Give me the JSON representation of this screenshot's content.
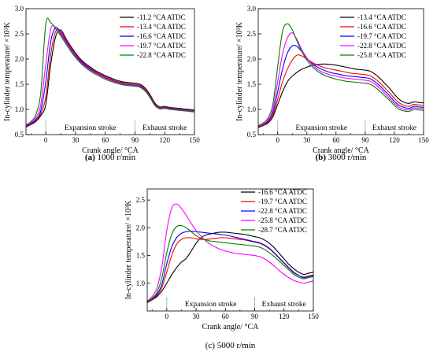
{
  "chart_data": [
    {
      "type": "line",
      "caption_letter": "(a)",
      "caption_text": " 1000 r/min",
      "xlabel": "Crank angle/ °CA",
      "ylabel": "In-cylinder temperature/ ×10³K",
      "xlim": [
        -20,
        150
      ],
      "ylim": [
        0.5,
        3.0
      ],
      "xticks": [
        0,
        30,
        60,
        90,
        120,
        150
      ],
      "yticks": [
        0.5,
        1.0,
        1.5,
        2.0,
        2.5,
        3.0
      ],
      "x_tick_labels": [
        "0",
        "30",
        "60",
        "90",
        "120",
        "150"
      ],
      "y_tick_labels": [
        "0.5",
        "1.0",
        "1.5",
        "2.0",
        "2.5",
        "3.0"
      ],
      "legend_placement": "top-right",
      "annotations": [
        "Expansion stroke",
        "Exhaust stroke"
      ],
      "stroke_boundary_x": 90,
      "x": [
        -20,
        -15,
        -10,
        -5,
        0,
        5,
        10,
        15,
        20,
        25,
        30,
        35,
        40,
        45,
        50,
        55,
        60,
        65,
        70,
        75,
        80,
        85,
        90,
        95,
        100,
        105,
        110,
        115,
        120,
        125,
        130,
        135,
        140,
        145,
        150
      ],
      "series": [
        {
          "name": "-11.2 °CA ATDC",
          "color": "#000000",
          "values": [
            0.65,
            0.7,
            0.76,
            0.88,
            1.1,
            1.9,
            2.45,
            2.58,
            2.42,
            2.26,
            2.12,
            2.0,
            1.91,
            1.84,
            1.77,
            1.72,
            1.67,
            1.63,
            1.59,
            1.56,
            1.54,
            1.53,
            1.52,
            1.5,
            1.43,
            1.3,
            1.13,
            1.05,
            1.06,
            1.04,
            1.03,
            1.02,
            1.01,
            1.0,
            0.99
          ]
        },
        {
          "name": "-13.4 °CA ATDC",
          "color": "#ff0000",
          "values": [
            0.66,
            0.71,
            0.78,
            0.92,
            1.25,
            2.1,
            2.55,
            2.55,
            2.4,
            2.24,
            2.1,
            1.98,
            1.89,
            1.82,
            1.75,
            1.7,
            1.65,
            1.61,
            1.57,
            1.54,
            1.52,
            1.51,
            1.5,
            1.48,
            1.41,
            1.28,
            1.11,
            1.04,
            1.05,
            1.03,
            1.02,
            1.01,
            1.0,
            0.99,
            0.98
          ]
        },
        {
          "name": "-16.6 °CA ATDC",
          "color": "#0000ff",
          "values": [
            0.67,
            0.72,
            0.8,
            0.98,
            1.55,
            2.35,
            2.62,
            2.52,
            2.37,
            2.21,
            2.07,
            1.96,
            1.87,
            1.8,
            1.73,
            1.68,
            1.63,
            1.59,
            1.55,
            1.52,
            1.5,
            1.49,
            1.48,
            1.46,
            1.39,
            1.26,
            1.1,
            1.03,
            1.04,
            1.02,
            1.01,
            1.0,
            0.99,
            0.98,
            0.97
          ]
        },
        {
          "name": "-19.7 °CA ATDC",
          "color": "#ff00ff",
          "values": [
            0.68,
            0.74,
            0.84,
            1.1,
            1.9,
            2.6,
            2.63,
            2.49,
            2.34,
            2.19,
            2.05,
            1.94,
            1.85,
            1.78,
            1.72,
            1.67,
            1.62,
            1.58,
            1.54,
            1.51,
            1.49,
            1.48,
            1.47,
            1.45,
            1.38,
            1.25,
            1.09,
            1.02,
            1.03,
            1.01,
            1.0,
            0.99,
            0.98,
            0.97,
            0.96
          ]
        },
        {
          "name": "-22.8 °CA ATDC",
          "color": "#008000",
          "values": [
            0.69,
            0.76,
            0.9,
            1.35,
            2.7,
            2.72,
            2.6,
            2.46,
            2.31,
            2.16,
            2.03,
            1.92,
            1.83,
            1.76,
            1.7,
            1.65,
            1.6,
            1.56,
            1.53,
            1.5,
            1.48,
            1.47,
            1.46,
            1.44,
            1.37,
            1.24,
            1.08,
            1.01,
            1.02,
            1.0,
            0.99,
            0.98,
            0.97,
            0.96,
            0.95
          ]
        }
      ]
    },
    {
      "type": "line",
      "caption_letter": "(b)",
      "caption_text": " 3000 r/min",
      "xlabel": "Crank angle/ °CA",
      "ylabel": "In-cylinder temperature/ ×10³K",
      "xlim": [
        -20,
        150
      ],
      "ylim": [
        0.5,
        3.0
      ],
      "xticks": [
        0,
        30,
        60,
        90,
        120,
        150
      ],
      "yticks": [
        0.5,
        1.0,
        1.5,
        2.0,
        2.5,
        3.0
      ],
      "x_tick_labels": [
        "0",
        "30",
        "60",
        "90",
        "120",
        "150"
      ],
      "y_tick_labels": [
        "0.5",
        "1.0",
        "1.5",
        "2.0",
        "2.5",
        "3.0"
      ],
      "legend_placement": "top-right",
      "annotations": [
        "Expansion stroke",
        "Exhaust stroke"
      ],
      "stroke_boundary_x": 90,
      "x": [
        -20,
        -15,
        -10,
        -5,
        0,
        5,
        10,
        15,
        20,
        25,
        30,
        35,
        40,
        45,
        50,
        55,
        60,
        65,
        70,
        75,
        80,
        85,
        90,
        95,
        100,
        105,
        110,
        115,
        120,
        125,
        130,
        135,
        140,
        145,
        150
      ],
      "series": [
        {
          "name": "-13.4 °CA ATDC",
          "color": "#000000",
          "values": [
            0.64,
            0.68,
            0.73,
            0.85,
            1.1,
            1.35,
            1.55,
            1.66,
            1.74,
            1.8,
            1.84,
            1.87,
            1.89,
            1.9,
            1.9,
            1.89,
            1.88,
            1.86,
            1.84,
            1.82,
            1.8,
            1.79,
            1.78,
            1.76,
            1.7,
            1.62,
            1.52,
            1.42,
            1.3,
            1.2,
            1.14,
            1.12,
            1.15,
            1.14,
            1.13
          ]
        },
        {
          "name": "-16.6 °CA ATDC",
          "color": "#ff0000",
          "values": [
            0.65,
            0.69,
            0.75,
            0.88,
            1.2,
            1.55,
            1.8,
            1.98,
            2.08,
            2.06,
            2.0,
            1.94,
            1.89,
            1.85,
            1.82,
            1.8,
            1.78,
            1.76,
            1.74,
            1.72,
            1.71,
            1.7,
            1.69,
            1.67,
            1.61,
            1.53,
            1.43,
            1.33,
            1.22,
            1.13,
            1.08,
            1.06,
            1.1,
            1.09,
            1.08
          ]
        },
        {
          "name": "-19.7 °CA ATDC",
          "color": "#0000ff",
          "values": [
            0.66,
            0.7,
            0.77,
            0.93,
            1.35,
            1.8,
            2.12,
            2.26,
            2.25,
            2.14,
            2.02,
            1.92,
            1.85,
            1.8,
            1.76,
            1.73,
            1.71,
            1.69,
            1.67,
            1.66,
            1.65,
            1.64,
            1.63,
            1.61,
            1.55,
            1.47,
            1.37,
            1.27,
            1.16,
            1.08,
            1.04,
            1.02,
            1.06,
            1.05,
            1.04
          ]
        },
        {
          "name": "-22.8 °CA ATDC",
          "color": "#ff00ff",
          "values": [
            0.67,
            0.71,
            0.79,
            1.0,
            1.55,
            2.1,
            2.42,
            2.52,
            2.38,
            2.18,
            2.02,
            1.9,
            1.81,
            1.75,
            1.71,
            1.68,
            1.66,
            1.64,
            1.62,
            1.61,
            1.6,
            1.59,
            1.58,
            1.56,
            1.5,
            1.42,
            1.32,
            1.22,
            1.12,
            1.04,
            1.0,
            0.99,
            1.03,
            1.02,
            1.01
          ]
        },
        {
          "name": "-25.8 °CA ATDC",
          "color": "#008000",
          "values": [
            0.68,
            0.73,
            0.83,
            1.1,
            1.85,
            2.55,
            2.7,
            2.58,
            2.35,
            2.14,
            1.98,
            1.86,
            1.77,
            1.71,
            1.66,
            1.63,
            1.6,
            1.58,
            1.56,
            1.55,
            1.54,
            1.53,
            1.52,
            1.5,
            1.44,
            1.36,
            1.27,
            1.18,
            1.08,
            1.0,
            0.97,
            0.96,
            1.0,
            0.99,
            0.98
          ]
        }
      ]
    },
    {
      "type": "line",
      "caption_letter": "(c)",
      "caption_text": " 5000 r/min",
      "caption_plain": true,
      "xlabel": "Crank angle/ °CA",
      "ylabel": "In-cylinder temperature/ ×10³K",
      "xlim": [
        -20,
        150
      ],
      "ylim": [
        0.5,
        2.7
      ],
      "xticks": [
        0,
        30,
        60,
        90,
        120,
        150
      ],
      "yticks": [
        1.0,
        1.5,
        2.0,
        2.5
      ],
      "x_tick_labels": [
        "0",
        "30",
        "60",
        "90",
        "120",
        "150"
      ],
      "y_tick_labels": [
        "1.0",
        "1.5",
        "2.0",
        "2.5"
      ],
      "legend_placement": "top-right",
      "annotations": [
        "Expansion stroke",
        "Exhaust stroke"
      ],
      "stroke_boundary_x": 90,
      "x": [
        -20,
        -15,
        -10,
        -5,
        0,
        5,
        10,
        15,
        20,
        25,
        30,
        35,
        40,
        45,
        50,
        55,
        60,
        65,
        70,
        75,
        80,
        85,
        90,
        95,
        100,
        105,
        110,
        115,
        120,
        125,
        130,
        135,
        140,
        145,
        150
      ],
      "series": [
        {
          "name": "-16.6 °CA ATDC",
          "color": "#000000",
          "values": [
            0.65,
            0.7,
            0.76,
            0.86,
            1.0,
            1.15,
            1.28,
            1.38,
            1.45,
            1.58,
            1.72,
            1.82,
            1.87,
            1.89,
            1.91,
            1.92,
            1.92,
            1.91,
            1.9,
            1.89,
            1.88,
            1.86,
            1.84,
            1.82,
            1.78,
            1.72,
            1.64,
            1.54,
            1.44,
            1.34,
            1.26,
            1.2,
            1.16,
            1.18,
            1.2
          ]
        },
        {
          "name": "-19.7 °CA ATDC",
          "color": "#ff0000",
          "values": [
            0.66,
            0.71,
            0.78,
            0.92,
            1.2,
            1.5,
            1.7,
            1.79,
            1.82,
            1.82,
            1.8,
            1.79,
            1.79,
            1.8,
            1.81,
            1.82,
            1.82,
            1.81,
            1.8,
            1.79,
            1.78,
            1.76,
            1.74,
            1.72,
            1.68,
            1.62,
            1.54,
            1.45,
            1.36,
            1.27,
            1.19,
            1.14,
            1.11,
            1.13,
            1.15
          ]
        },
        {
          "name": "-22.8 °CA ATDC",
          "color": "#0000ff",
          "values": [
            0.66,
            0.72,
            0.8,
            0.98,
            1.35,
            1.65,
            1.82,
            1.9,
            1.93,
            1.94,
            1.93,
            1.92,
            1.91,
            1.9,
            1.89,
            1.88,
            1.87,
            1.85,
            1.83,
            1.81,
            1.79,
            1.77,
            1.75,
            1.73,
            1.69,
            1.63,
            1.55,
            1.46,
            1.37,
            1.28,
            1.2,
            1.14,
            1.1,
            1.12,
            1.14
          ]
        },
        {
          "name": "-25.8 °CA ATDC",
          "color": "#ff00ff",
          "values": [
            0.68,
            0.76,
            0.92,
            1.3,
            1.95,
            2.35,
            2.43,
            2.35,
            2.22,
            2.08,
            1.95,
            1.85,
            1.76,
            1.7,
            1.65,
            1.61,
            1.58,
            1.56,
            1.54,
            1.53,
            1.52,
            1.51,
            1.5,
            1.48,
            1.44,
            1.38,
            1.31,
            1.23,
            1.16,
            1.1,
            1.05,
            1.02,
            1.0,
            1.02,
            1.04
          ]
        },
        {
          "name": "-28.7 °CA ATDC",
          "color": "#008000",
          "values": [
            0.67,
            0.73,
            0.84,
            1.1,
            1.55,
            1.88,
            2.02,
            2.04,
            2.0,
            1.93,
            1.86,
            1.81,
            1.78,
            1.76,
            1.75,
            1.74,
            1.73,
            1.72,
            1.71,
            1.7,
            1.69,
            1.68,
            1.67,
            1.65,
            1.61,
            1.55,
            1.48,
            1.4,
            1.32,
            1.24,
            1.16,
            1.11,
            1.08,
            1.1,
            1.12
          ]
        }
      ]
    }
  ]
}
